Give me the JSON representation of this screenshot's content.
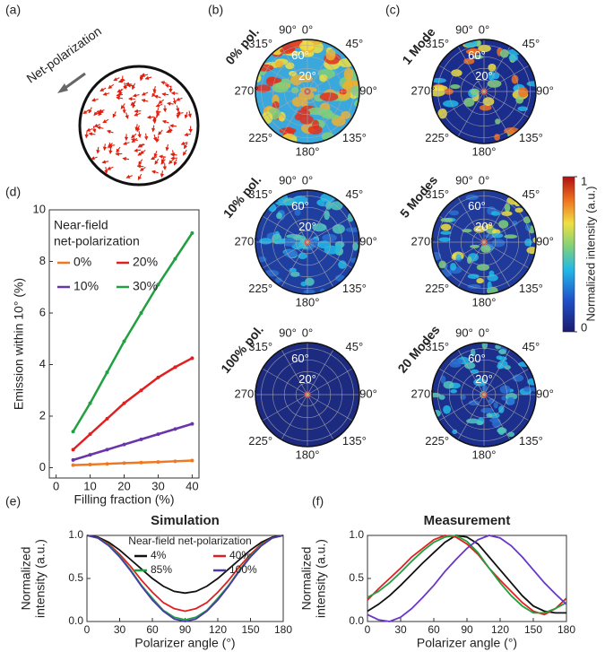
{
  "panel_labels": [
    "(a)",
    "(b)",
    "(c)",
    "(d)",
    "(e)",
    "(f)"
  ],
  "panel_a": {
    "label": "Net-polarization"
  },
  "polar": {
    "angle_labels": [
      "0°",
      "45°",
      "90°",
      "135°",
      "180°",
      "225°",
      "270°",
      "315°"
    ],
    "radial_labels": [
      "20°",
      "60°",
      "90°"
    ],
    "plots": [
      {
        "title": "0% pol."
      },
      {
        "title": "10% pol."
      },
      {
        "title": "100% pol."
      },
      {
        "title": "1 Mode"
      },
      {
        "title": "5 Modes"
      },
      {
        "title": "20 Modes"
      }
    ]
  },
  "colorbar": {
    "title": "Normalized intensity (a.u.)",
    "ticks": [
      0,
      1
    ]
  },
  "chart_data": [
    {
      "type": "line",
      "markers": true,
      "x_label": "Filling fraction (%)",
      "y_label": "Emission within 10° (%)",
      "legend_title": [
        "Near-field",
        "net-polarization"
      ],
      "x": [
        5,
        10,
        15,
        20,
        25,
        30,
        35,
        40
      ],
      "series": [
        {
          "name": "0%",
          "color": "#f07820",
          "values": [
            0.1,
            0.12,
            0.15,
            0.18,
            0.2,
            0.22,
            0.25,
            0.28
          ]
        },
        {
          "name": "20%",
          "color": "#e02020",
          "values": [
            0.7,
            1.3,
            1.9,
            2.5,
            3.0,
            3.5,
            3.9,
            4.25
          ]
        },
        {
          "name": "10%",
          "color": "#6a35a8",
          "values": [
            0.3,
            0.5,
            0.7,
            0.9,
            1.1,
            1.3,
            1.5,
            1.7
          ]
        },
        {
          "name": "30%",
          "color": "#20a040",
          "values": [
            1.4,
            2.5,
            3.7,
            4.9,
            6.0,
            7.1,
            8.1,
            9.1
          ]
        }
      ],
      "xlim": [
        -2,
        42
      ],
      "ylim": [
        -0.4,
        10
      ],
      "xticks": [
        0,
        10,
        20,
        30,
        40
      ],
      "yticks": [
        0,
        2,
        4,
        6,
        8,
        10
      ]
    },
    {
      "type": "line",
      "markers": false,
      "title": "Simulation",
      "x_label": "Polarizer angle (°)",
      "y_label": [
        "Normalized",
        "intensity (a.u.)"
      ],
      "legend_title": "Near-field net-polarization",
      "x": [
        0,
        10,
        20,
        30,
        40,
        50,
        60,
        70,
        80,
        90,
        100,
        110,
        120,
        130,
        140,
        150,
        160,
        170,
        180
      ],
      "series": [
        {
          "name": "4%",
          "color": "#111111",
          "values": [
            1,
            0.98,
            0.92,
            0.83,
            0.72,
            0.61,
            0.5,
            0.41,
            0.35,
            0.33,
            0.35,
            0.41,
            0.5,
            0.61,
            0.72,
            0.83,
            0.92,
            0.98,
            1
          ]
        },
        {
          "name": "40%",
          "color": "#e02020",
          "values": [
            1,
            0.97,
            0.9,
            0.78,
            0.64,
            0.48,
            0.34,
            0.22,
            0.15,
            0.12,
            0.15,
            0.22,
            0.34,
            0.48,
            0.64,
            0.78,
            0.9,
            0.97,
            1
          ]
        },
        {
          "name": "85%",
          "color": "#20a040",
          "values": [
            1,
            0.97,
            0.89,
            0.76,
            0.6,
            0.42,
            0.27,
            0.13,
            0.05,
            0.02,
            0.05,
            0.13,
            0.27,
            0.42,
            0.6,
            0.76,
            0.89,
            0.97,
            1
          ]
        },
        {
          "name": "100%",
          "color": "#4a3aa8",
          "values": [
            1,
            0.97,
            0.88,
            0.75,
            0.59,
            0.41,
            0.25,
            0.12,
            0.03,
            0,
            0.03,
            0.12,
            0.25,
            0.41,
            0.59,
            0.75,
            0.88,
            0.97,
            1
          ]
        }
      ],
      "xlim": [
        0,
        180
      ],
      "ylim": [
        0,
        1
      ],
      "xticks": [
        0,
        30,
        60,
        90,
        120,
        150,
        180
      ],
      "yticks": [
        {
          "value": 0,
          "label": "0.0"
        },
        {
          "value": 0.5,
          "label": "0.5"
        },
        {
          "value": 1,
          "label": "1.0"
        }
      ]
    },
    {
      "type": "line",
      "markers": false,
      "title": "Measurement",
      "x_label": "Polarizer angle (°)",
      "y_label": [
        "Normalized",
        "intensity (a.u.)"
      ],
      "x": [
        0,
        10,
        20,
        30,
        40,
        50,
        60,
        70,
        80,
        90,
        100,
        110,
        120,
        130,
        140,
        150,
        160,
        170,
        180
      ],
      "series": [
        {
          "color": "#111111",
          "values": [
            0.12,
            0.2,
            0.3,
            0.42,
            0.55,
            0.68,
            0.8,
            0.92,
            1.0,
            0.98,
            0.9,
            0.75,
            0.6,
            0.45,
            0.3,
            0.18,
            0.12,
            0.1,
            0.1
          ]
        },
        {
          "color": "#e02020",
          "values": [
            0.25,
            0.38,
            0.5,
            0.62,
            0.75,
            0.85,
            0.95,
            1.0,
            0.98,
            0.9,
            0.78,
            0.62,
            0.48,
            0.35,
            0.22,
            0.12,
            0.08,
            0.15,
            0.27
          ]
        },
        {
          "color": "#20a040",
          "values": [
            0.28,
            0.35,
            0.45,
            0.57,
            0.7,
            0.82,
            0.92,
            0.98,
            1.0,
            0.93,
            0.8,
            0.62,
            0.45,
            0.3,
            0.18,
            0.1,
            0.1,
            0.15,
            0.22
          ]
        },
        {
          "color": "#6a35c8",
          "values": [
            0.08,
            0.02,
            0.0,
            0.05,
            0.15,
            0.28,
            0.42,
            0.58,
            0.72,
            0.85,
            0.95,
            1.0,
            0.97,
            0.88,
            0.75,
            0.6,
            0.45,
            0.32,
            0.2
          ]
        }
      ],
      "xlim": [
        0,
        180
      ],
      "ylim": [
        0,
        1
      ],
      "xticks": [
        0,
        30,
        60,
        90,
        120,
        150,
        180
      ],
      "yticks": [
        {
          "value": 0,
          "label": "0.0"
        },
        {
          "value": 0.5,
          "label": "0.5"
        },
        {
          "value": 1,
          "label": "1.0"
        }
      ]
    }
  ]
}
